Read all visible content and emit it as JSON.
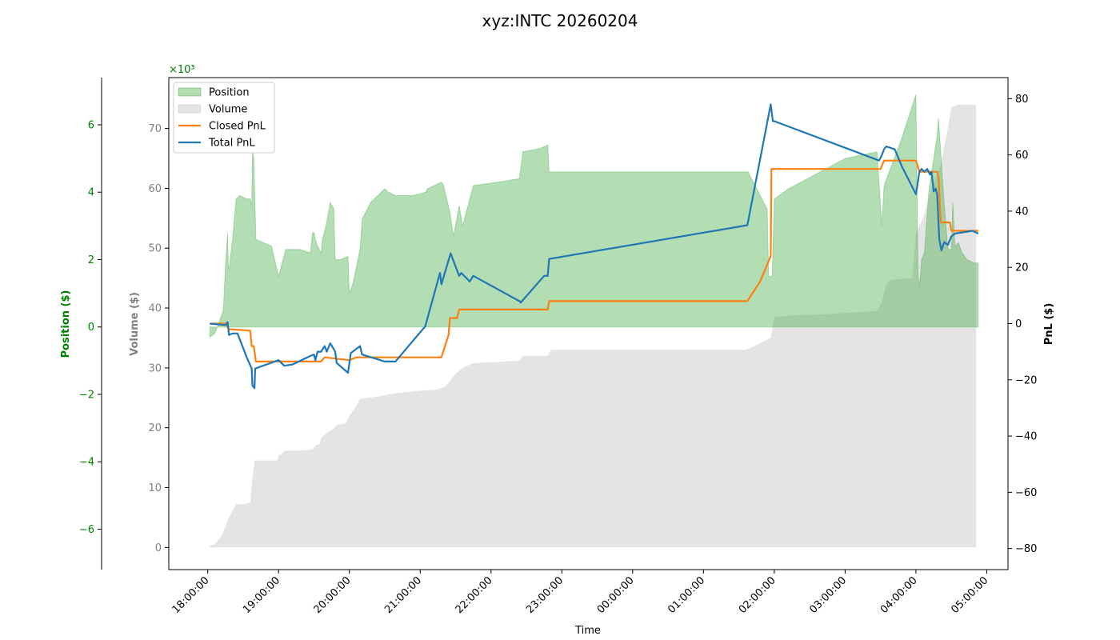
{
  "chart_data": {
    "type": "line",
    "title": "xyz:INTC 20260204",
    "xlabel": "Time",
    "x_ticks": [
      "18:00:00",
      "19:00:00",
      "20:00:00",
      "21:00:00",
      "22:00:00",
      "23:00:00",
      "00:00:00",
      "01:00:00",
      "02:00:00",
      "03:00:00",
      "04:00:00",
      "05:00:00"
    ],
    "axes": {
      "position": {
        "label": "Position ($)",
        "scale_label": "×10³",
        "ylim": [
          -7.2,
          7.4
        ],
        "ticks": [
          -6,
          -4,
          -2,
          0,
          2,
          4,
          6
        ],
        "color": "#008000"
      },
      "volume": {
        "label": "Volume ($)",
        "ylim": [
          -3.7,
          78.5
        ],
        "ticks": [
          0,
          10,
          20,
          30,
          40,
          50,
          60,
          70
        ],
        "color": "#808080"
      },
      "pnl": {
        "label": "PnL ($)",
        "ylim": [
          -87.5,
          87.5
        ],
        "ticks": [
          -80,
          -60,
          -40,
          -20,
          0,
          20,
          40,
          60,
          80
        ],
        "color": "#000000"
      }
    },
    "legend": {
      "placement": "top-left",
      "entries": [
        {
          "label": "Position",
          "kind": "area",
          "color": "#2ca02c"
        },
        {
          "label": "Volume",
          "kind": "area",
          "color": "#bbbbbb"
        },
        {
          "label": "Closed PnL",
          "kind": "line",
          "color": "#ff7f0e"
        },
        {
          "label": "Total PnL",
          "kind": "line",
          "color": "#1f77b4"
        }
      ]
    },
    "x_domain_hours": [
      17.45,
      29.3
    ],
    "series": [
      {
        "name": "Position",
        "axis": "position",
        "color": "#2ca02c",
        "points": [
          [
            18.03,
            -0.3
          ],
          [
            18.1,
            -0.2
          ],
          [
            18.22,
            0.5
          ],
          [
            18.25,
            1.8
          ],
          [
            18.28,
            2.8
          ],
          [
            18.29,
            1.8
          ],
          [
            18.3,
            1.7
          ],
          [
            18.35,
            2.6
          ],
          [
            18.4,
            3.8
          ],
          [
            18.45,
            3.9
          ],
          [
            18.55,
            3.8
          ],
          [
            18.6,
            3.8
          ],
          [
            18.62,
            3.6
          ],
          [
            18.63,
            5.2
          ],
          [
            18.65,
            5.0
          ],
          [
            18.68,
            2.6
          ],
          [
            18.9,
            2.4
          ],
          [
            19.0,
            1.5
          ],
          [
            19.1,
            2.3
          ],
          [
            19.2,
            2.3
          ],
          [
            19.3,
            2.3
          ],
          [
            19.45,
            2.2
          ],
          [
            19.48,
            2.8
          ],
          [
            19.5,
            2.8
          ],
          [
            19.52,
            2.6
          ],
          [
            19.55,
            2.4
          ],
          [
            19.6,
            2.2
          ],
          [
            19.62,
            2.6
          ],
          [
            19.67,
            3.0
          ],
          [
            19.73,
            3.7
          ],
          [
            19.78,
            3.5
          ],
          [
            19.8,
            2.0
          ],
          [
            19.88,
            2.0
          ],
          [
            19.98,
            2.1
          ],
          [
            20.0,
            1.0
          ],
          [
            20.05,
            1.3
          ],
          [
            20.15,
            2.3
          ],
          [
            20.18,
            3.2
          ],
          [
            20.3,
            3.7
          ],
          [
            20.5,
            4.1
          ],
          [
            20.55,
            4.0
          ],
          [
            20.65,
            3.9
          ],
          [
            20.9,
            3.9
          ],
          [
            21.08,
            4.0
          ],
          [
            21.1,
            4.1
          ],
          [
            21.3,
            4.3
          ],
          [
            21.33,
            4.2
          ],
          [
            21.42,
            3.4
          ],
          [
            21.47,
            2.7
          ],
          [
            21.55,
            3.6
          ],
          [
            21.6,
            3.0
          ],
          [
            21.75,
            4.2
          ],
          [
            22.1,
            4.3
          ],
          [
            22.4,
            4.4
          ],
          [
            22.45,
            5.2
          ],
          [
            22.7,
            5.3
          ],
          [
            22.8,
            5.4
          ],
          [
            22.82,
            4.6
          ],
          [
            23.0,
            4.6
          ],
          [
            24.0,
            4.6
          ],
          [
            25.0,
            4.6
          ],
          [
            25.63,
            4.6
          ],
          [
            25.9,
            3.5
          ],
          [
            25.92,
            1.5
          ],
          [
            25.97,
            1.5
          ],
          [
            26.0,
            3.8
          ],
          [
            26.2,
            4.1
          ],
          [
            27.0,
            5.0
          ],
          [
            27.45,
            5.2
          ],
          [
            27.52,
            3.0
          ],
          [
            27.55,
            4.2
          ],
          [
            27.8,
            5.6
          ],
          [
            28.0,
            6.9
          ],
          [
            28.03,
            1.5
          ],
          [
            28.05,
            1.2
          ],
          [
            28.08,
            2.0
          ],
          [
            28.12,
            2.2
          ],
          [
            28.18,
            4.0
          ],
          [
            28.3,
            5.7
          ],
          [
            28.32,
            6.2
          ],
          [
            28.38,
            4.2
          ],
          [
            28.45,
            2.3
          ],
          [
            28.5,
            2.3
          ],
          [
            28.52,
            3.7
          ],
          [
            28.55,
            2.4
          ],
          [
            28.6,
            2.5
          ],
          [
            28.65,
            2.2
          ],
          [
            28.72,
            2.0
          ],
          [
            28.82,
            1.9
          ],
          [
            28.88,
            1.9
          ]
        ]
      },
      {
        "name": "Volume",
        "axis": "volume",
        "color": "#bbbbbb",
        "points": [
          [
            18.03,
            0.3
          ],
          [
            18.1,
            0.5
          ],
          [
            18.2,
            2.0
          ],
          [
            18.3,
            5.0
          ],
          [
            18.4,
            7.2
          ],
          [
            18.5,
            7.2
          ],
          [
            18.6,
            7.5
          ],
          [
            18.63,
            11.5
          ],
          [
            18.66,
            14.5
          ],
          [
            18.8,
            14.5
          ],
          [
            18.98,
            14.5
          ],
          [
            19.0,
            15.3
          ],
          [
            19.1,
            16.2
          ],
          [
            19.3,
            16.2
          ],
          [
            19.48,
            16.4
          ],
          [
            19.52,
            17.0
          ],
          [
            19.58,
            17.3
          ],
          [
            19.6,
            18.3
          ],
          [
            19.7,
            19.3
          ],
          [
            19.77,
            19.8
          ],
          [
            19.83,
            20.5
          ],
          [
            19.95,
            20.7
          ],
          [
            20.0,
            22.0
          ],
          [
            20.08,
            23.3
          ],
          [
            20.15,
            24.8
          ],
          [
            20.45,
            25.3
          ],
          [
            20.6,
            25.7
          ],
          [
            21.0,
            26.2
          ],
          [
            21.2,
            26.3
          ],
          [
            21.35,
            26.8
          ],
          [
            21.43,
            28.0
          ],
          [
            21.5,
            29.0
          ],
          [
            21.6,
            30.0
          ],
          [
            21.75,
            30.8
          ],
          [
            22.4,
            31.2
          ],
          [
            22.45,
            32.0
          ],
          [
            22.8,
            32.0
          ],
          [
            22.85,
            33.0
          ],
          [
            23.5,
            33.0
          ],
          [
            25.6,
            33.0
          ],
          [
            25.95,
            35.0
          ],
          [
            26.0,
            38.5
          ],
          [
            26.3,
            38.8
          ],
          [
            26.8,
            39.0
          ],
          [
            27.0,
            39.2
          ],
          [
            27.45,
            39.5
          ],
          [
            27.52,
            41.0
          ],
          [
            27.58,
            44.0
          ],
          [
            27.65,
            44.7
          ],
          [
            27.95,
            45.0
          ],
          [
            28.0,
            52.5
          ],
          [
            28.1,
            55.0
          ],
          [
            28.25,
            61.0
          ],
          [
            28.35,
            64.0
          ],
          [
            28.45,
            70.0
          ],
          [
            28.5,
            73.5
          ],
          [
            28.6,
            74.0
          ],
          [
            28.75,
            74.0
          ],
          [
            28.85,
            74.0
          ]
        ]
      },
      {
        "name": "Closed PnL",
        "axis": "pnl",
        "color": "#ff7f0e",
        "points": [
          [
            18.03,
            0
          ],
          [
            18.25,
            0
          ],
          [
            18.3,
            -2
          ],
          [
            18.6,
            -2.5
          ],
          [
            18.62,
            -8
          ],
          [
            18.65,
            -8
          ],
          [
            18.68,
            -13.5
          ],
          [
            18.8,
            -13.5
          ],
          [
            19.5,
            -13.5
          ],
          [
            19.6,
            -13.5
          ],
          [
            19.65,
            -12
          ],
          [
            20.0,
            -13
          ],
          [
            20.1,
            -12
          ],
          [
            20.65,
            -12
          ],
          [
            21.0,
            -12
          ],
          [
            21.3,
            -12
          ],
          [
            21.4,
            -4
          ],
          [
            21.42,
            2
          ],
          [
            21.52,
            2
          ],
          [
            21.55,
            5
          ],
          [
            22.8,
            5
          ],
          [
            22.82,
            8
          ],
          [
            24.5,
            8
          ],
          [
            25.62,
            8
          ],
          [
            25.8,
            15
          ],
          [
            25.95,
            24
          ],
          [
            25.96,
            55
          ],
          [
            27.5,
            55
          ],
          [
            27.55,
            58
          ],
          [
            28.0,
            58
          ],
          [
            28.05,
            54
          ],
          [
            28.3,
            54
          ],
          [
            28.32,
            52
          ],
          [
            28.35,
            36
          ],
          [
            28.48,
            36
          ],
          [
            28.5,
            33
          ],
          [
            28.88,
            33
          ]
        ]
      },
      {
        "name": "Total PnL",
        "axis": "pnl",
        "color": "#1f77b4",
        "points": [
          [
            18.03,
            0
          ],
          [
            18.25,
            -0.5
          ],
          [
            18.28,
            0.5
          ],
          [
            18.3,
            -4
          ],
          [
            18.35,
            -3.5
          ],
          [
            18.42,
            -3.5
          ],
          [
            18.55,
            -12
          ],
          [
            18.62,
            -16
          ],
          [
            18.63,
            -22
          ],
          [
            18.66,
            -23
          ],
          [
            18.67,
            -16
          ],
          [
            19.0,
            -13
          ],
          [
            19.08,
            -15
          ],
          [
            19.2,
            -14.5
          ],
          [
            19.45,
            -11.5
          ],
          [
            19.5,
            -11
          ],
          [
            19.52,
            -13
          ],
          [
            19.55,
            -10
          ],
          [
            19.6,
            -10
          ],
          [
            19.65,
            -8
          ],
          [
            19.68,
            -10
          ],
          [
            19.73,
            -7
          ],
          [
            19.8,
            -10
          ],
          [
            19.82,
            -14
          ],
          [
            19.98,
            -17.5
          ],
          [
            20.02,
            -10.5
          ],
          [
            20.15,
            -8
          ],
          [
            20.18,
            -11
          ],
          [
            20.5,
            -13.5
          ],
          [
            20.65,
            -13.5
          ],
          [
            21.07,
            -1
          ],
          [
            21.28,
            18
          ],
          [
            21.3,
            14
          ],
          [
            21.43,
            25
          ],
          [
            21.55,
            17
          ],
          [
            21.58,
            18
          ],
          [
            21.7,
            15
          ],
          [
            21.75,
            17
          ],
          [
            22.4,
            8
          ],
          [
            22.42,
            7.5
          ],
          [
            22.75,
            17
          ],
          [
            22.8,
            17
          ],
          [
            22.82,
            23
          ],
          [
            25.62,
            35
          ],
          [
            25.95,
            78
          ],
          [
            25.98,
            72
          ],
          [
            26.0,
            72
          ],
          [
            27.48,
            58
          ],
          [
            27.52,
            60
          ],
          [
            27.55,
            62
          ],
          [
            27.58,
            63
          ],
          [
            27.7,
            62
          ],
          [
            27.8,
            56
          ],
          [
            28.0,
            46
          ],
          [
            28.05,
            54
          ],
          [
            28.08,
            55
          ],
          [
            28.12,
            54
          ],
          [
            28.16,
            55
          ],
          [
            28.2,
            53
          ],
          [
            28.22,
            54
          ],
          [
            28.25,
            47
          ],
          [
            28.28,
            48
          ],
          [
            28.3,
            46
          ],
          [
            28.33,
            30
          ],
          [
            28.36,
            26
          ],
          [
            28.4,
            29
          ],
          [
            28.45,
            28
          ],
          [
            28.5,
            31
          ],
          [
            28.55,
            32
          ],
          [
            28.8,
            33
          ],
          [
            28.88,
            32
          ]
        ]
      }
    ]
  }
}
